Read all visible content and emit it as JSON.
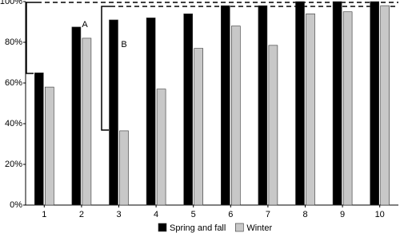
{
  "chart_data": {
    "type": "bar",
    "categories": [
      "1",
      "2",
      "3",
      "4",
      "5",
      "6",
      "7",
      "8",
      "9",
      "10"
    ],
    "series": [
      {
        "name": "Spring and fall",
        "color": "#000000",
        "values": [
          65,
          87.5,
          91,
          92,
          94,
          98,
          98,
          100,
          100,
          100
        ]
      },
      {
        "name": "Winter",
        "color": "#c8c8c8",
        "values": [
          58,
          82,
          36.5,
          57,
          77,
          88,
          78.5,
          94,
          95,
          98
        ]
      }
    ],
    "ylim": [
      0,
      100
    ],
    "yticks": [
      {
        "value": 0,
        "label": "0%"
      },
      {
        "value": 20,
        "label": "20%"
      },
      {
        "value": 40,
        "label": "40%"
      },
      {
        "value": 60,
        "label": "60%"
      },
      {
        "value": 80,
        "label": "80%"
      },
      {
        "value": 100,
        "label": "100%"
      }
    ],
    "annotations": [
      "A",
      "B"
    ],
    "legend": "bottom"
  }
}
